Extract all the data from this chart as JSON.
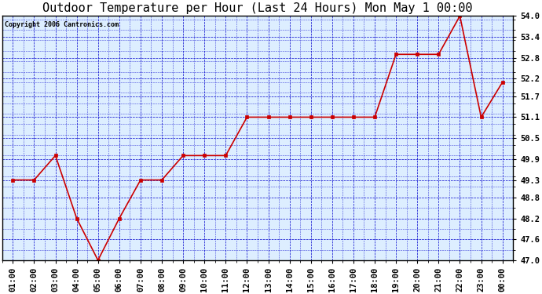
{
  "title": "Outdoor Temperature per Hour (Last 24 Hours) Mon May 1 00:00",
  "copyright": "Copyright 2006 Cantronics.com",
  "hours": [
    "01:00",
    "02:00",
    "03:00",
    "04:00",
    "05:00",
    "06:00",
    "07:00",
    "08:00",
    "09:00",
    "10:00",
    "11:00",
    "12:00",
    "13:00",
    "14:00",
    "15:00",
    "16:00",
    "17:00",
    "18:00",
    "19:00",
    "20:00",
    "21:00",
    "22:00",
    "23:00",
    "00:00"
  ],
  "values": [
    49.3,
    49.3,
    50.0,
    48.2,
    47.0,
    48.2,
    49.3,
    49.3,
    50.0,
    50.0,
    50.0,
    51.1,
    51.1,
    51.1,
    51.1,
    51.1,
    51.1,
    51.1,
    52.9,
    52.9,
    52.9,
    54.0,
    51.1,
    52.1
  ],
  "ylim": [
    47.0,
    54.0
  ],
  "yticks": [
    47.0,
    47.6,
    48.2,
    48.8,
    49.3,
    49.9,
    50.5,
    51.1,
    51.7,
    52.2,
    52.8,
    53.4,
    54.0
  ],
  "line_color": "#cc0000",
  "marker_color": "#cc0000",
  "bg_color": "#ddeeff",
  "fig_bg_color": "#ffffff",
  "border_color": "#000000",
  "grid_color": "#0000cc",
  "title_color": "#000000",
  "copyright_color": "#000000",
  "axis_label_color": "#000000",
  "title_fontsize": 11,
  "tick_fontsize": 7.5
}
